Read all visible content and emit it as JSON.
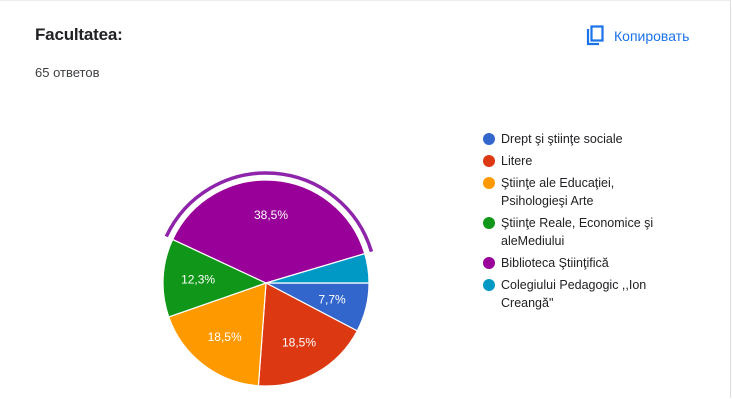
{
  "question": {
    "title": "Facultatea:",
    "response_count": "65 ответов"
  },
  "toolbar": {
    "copy_label": "Копировать",
    "copy_icon": "copy-icon"
  },
  "colors": {
    "accent": "#1a73e8",
    "highlight_arc": "#8e24aa"
  },
  "chart_data": {
    "type": "pie",
    "title": "",
    "legend_position": "right",
    "total_responses": 65,
    "highlighted_slice": "Biblioteca Ştiinţifică",
    "slices": [
      {
        "label": "Drept şi ştiinţe sociale",
        "value": 7.7,
        "data_label": "7,7%",
        "color": "#3366cc"
      },
      {
        "label": "Litere",
        "value": 18.5,
        "data_label": "18,5%",
        "color": "#dc3912"
      },
      {
        "label": "Ştiinţe ale Educaţiei,\nPsihologieşi Arte",
        "value": 18.5,
        "data_label": "18,5%",
        "color": "#ff9900"
      },
      {
        "label": "Ştiinţe Reale, Economice şi\naleMediului",
        "value": 12.3,
        "data_label": "12,3%",
        "color": "#109618"
      },
      {
        "label": "Biblioteca Ştiinţifică",
        "value": 38.5,
        "data_label": "38,5%",
        "color": "#990099"
      },
      {
        "label": "Colegiului Pedagogic ,,Ion\nCreangă\"",
        "value": 4.6,
        "data_label": "",
        "color": "#0099c6"
      }
    ]
  }
}
